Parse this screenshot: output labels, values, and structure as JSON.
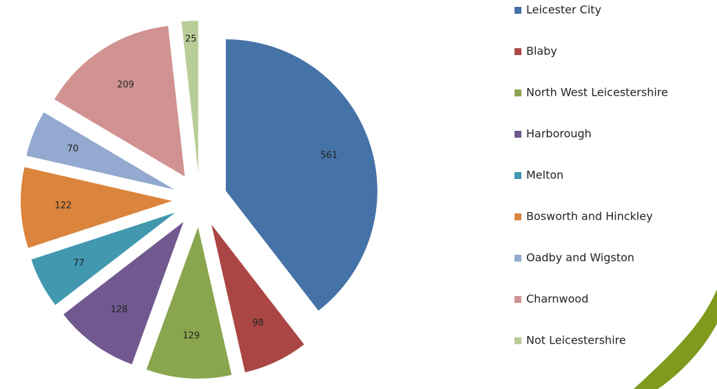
{
  "chart_data": {
    "type": "pie",
    "categories": [
      "Leicester City",
      "Blaby",
      "North West Leicestershire",
      "Harborough",
      "Melton",
      "Bosworth and Hinckley",
      "Oadby and Wigston",
      "Charnwood",
      "Not Leicestershire"
    ],
    "values": [
      561,
      98,
      129,
      128,
      77,
      122,
      70,
      209,
      25
    ],
    "colors": [
      "#4572a7",
      "#aa4643",
      "#89a54e",
      "#71588f",
      "#4198af",
      "#db843d",
      "#93a9cf",
      "#d19392",
      "#b9cd96"
    ],
    "exploded": true,
    "legend": "right"
  }
}
